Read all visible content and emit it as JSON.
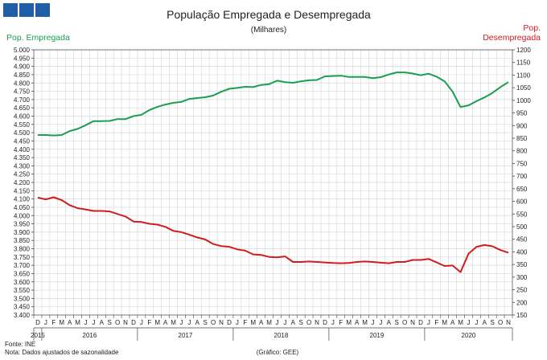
{
  "header": {
    "logo": {
      "blocks": 3,
      "color": "#1f5fa8",
      "icon": "logo-squares"
    }
  },
  "chart_data": {
    "type": "line",
    "title": "População Empregada e Desempregada",
    "subtitle": "(Milhares)",
    "left_axis_label": "Pop. Empregada",
    "right_axis_label_line1": "Pop.",
    "right_axis_label_line2": "Desempregada",
    "left_axis": {
      "min": 3400,
      "max": 5000,
      "step": 50,
      "tick_labels": [
        "3.400",
        "3.450",
        "3.500",
        "3.550",
        "3.600",
        "3.650",
        "3.700",
        "3.750",
        "3.800",
        "3.850",
        "3.900",
        "3.950",
        "4.000",
        "4.050",
        "4.100",
        "4.150",
        "4.200",
        "4.250",
        "4.300",
        "4.350",
        "4.400",
        "4.450",
        "4.500",
        "4.550",
        "4.600",
        "4.650",
        "4.700",
        "4.750",
        "4.800",
        "4.850",
        "4.900",
        "4.950",
        "5.000"
      ]
    },
    "right_axis": {
      "min": 150,
      "max": 1200,
      "step": 50,
      "tick_labels": [
        "150",
        "200",
        "250",
        "300",
        "350",
        "400",
        "450",
        "500",
        "550",
        "600",
        "650",
        "700",
        "750",
        "800",
        "850",
        "900",
        "950",
        "1000",
        "1050",
        "1100",
        "1150",
        "1200"
      ]
    },
    "month_labels": [
      "D",
      "J",
      "F",
      "M",
      "A",
      "M",
      "J",
      "J",
      "A",
      "S",
      "O",
      "N",
      "D",
      "J",
      "F",
      "M",
      "A",
      "M",
      "J",
      "J",
      "A",
      "S",
      "O",
      "N",
      "D",
      "J",
      "F",
      "M",
      "A",
      "M",
      "J",
      "J",
      "A",
      "S",
      "O",
      "N",
      "D",
      "J",
      "F",
      "M",
      "A",
      "M",
      "J",
      "J",
      "A",
      "S",
      "O",
      "N",
      "D",
      "J",
      "F",
      "M",
      "A",
      "M",
      "J",
      "J",
      "A",
      "S",
      "O",
      "N"
    ],
    "year_labels": [
      {
        "label": "2015",
        "start": 0,
        "end": 0
      },
      {
        "label": "2016",
        "start": 1,
        "end": 12
      },
      {
        "label": "2017",
        "start": 13,
        "end": 24
      },
      {
        "label": "2018",
        "start": 25,
        "end": 36
      },
      {
        "label": "2019",
        "start": 37,
        "end": 48
      },
      {
        "label": "2020",
        "start": 49,
        "end": 59
      }
    ],
    "grid": true,
    "series": [
      {
        "name": "Pop. Empregada",
        "axis": "left",
        "color": "#1a9e50",
        "values": [
          4486,
          4486,
          4483,
          4486,
          4510,
          4523,
          4545,
          4570,
          4570,
          4571,
          4582,
          4582,
          4600,
          4608,
          4637,
          4656,
          4670,
          4680,
          4686,
          4704,
          4709,
          4714,
          4724,
          4747,
          4765,
          4770,
          4777,
          4775,
          4788,
          4793,
          4814,
          4805,
          4801,
          4810,
          4816,
          4818,
          4840,
          4842,
          4844,
          4836,
          4836,
          4836,
          4829,
          4835,
          4851,
          4864,
          4864,
          4857,
          4847,
          4856,
          4838,
          4810,
          4748,
          4655,
          4665,
          4690,
          4713,
          4740,
          4775,
          4805
        ]
      },
      {
        "name": "Pop. Desempregada",
        "axis": "right",
        "color": "#d01c1c",
        "values": [
          615,
          608,
          616,
          605,
          585,
          573,
          568,
          562,
          562,
          560,
          550,
          540,
          520,
          518,
          511,
          508,
          499,
          483,
          478,
          468,
          457,
          449,
          431,
          423,
          420,
          410,
          405,
          390,
          388,
          380,
          378,
          382,
          360,
          360,
          362,
          360,
          358,
          356,
          355,
          356,
          360,
          362,
          360,
          357,
          355,
          360,
          360,
          368,
          368,
          372,
          358,
          344,
          346,
          320,
          393,
          420,
          427,
          422,
          407,
          397
        ]
      }
    ],
    "source_note": "Fonte: INE",
    "note": "Nota: Dados ajustados de sazonalidade",
    "credit": "(Gráfico: GEE)"
  }
}
